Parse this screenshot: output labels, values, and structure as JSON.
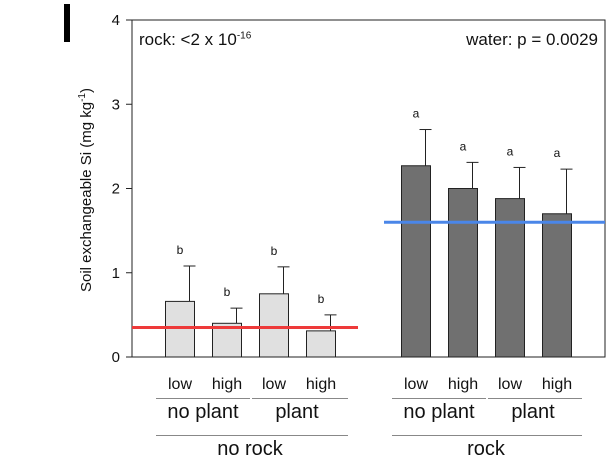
{
  "chart_data": {
    "type": "bar",
    "panel_label": "I",
    "ylabel": {
      "prefix": "Soil exchangeable Si (mg kg",
      "exp": "-1",
      "suffix": ")"
    },
    "ylim": [
      0,
      4
    ],
    "yticks": [
      "0",
      "1",
      "2",
      "3",
      "4"
    ],
    "grid": false,
    "bars": [
      {
        "group": "no rock",
        "plant": "no plant",
        "water": "low",
        "value": 0.66,
        "error": 0.42,
        "letter": "b",
        "color": "#e0e0e0"
      },
      {
        "group": "no rock",
        "plant": "no plant",
        "water": "high",
        "value": 0.4,
        "error": 0.18,
        "letter": "b",
        "color": "#e0e0e0"
      },
      {
        "group": "no rock",
        "plant": "plant",
        "water": "low",
        "value": 0.75,
        "error": 0.32,
        "letter": "b",
        "color": "#e0e0e0"
      },
      {
        "group": "no rock",
        "plant": "plant",
        "water": "high",
        "value": 0.31,
        "error": 0.19,
        "letter": "b",
        "color": "#e0e0e0"
      },
      {
        "group": "rock",
        "plant": "no plant",
        "water": "low",
        "value": 2.27,
        "error": 0.43,
        "letter": "a",
        "color": "#707070"
      },
      {
        "group": "rock",
        "plant": "no plant",
        "water": "high",
        "value": 2.0,
        "error": 0.31,
        "letter": "a",
        "color": "#707070"
      },
      {
        "group": "rock",
        "plant": "plant",
        "water": "low",
        "value": 1.88,
        "error": 0.37,
        "letter": "a",
        "color": "#707070"
      },
      {
        "group": "rock",
        "plant": "plant",
        "water": "high",
        "value": 1.7,
        "error": 0.53,
        "letter": "a",
        "color": "#707070"
      }
    ],
    "mean_lines": [
      {
        "group": "no rock",
        "value": 0.35,
        "color": "#ee3a3a"
      },
      {
        "group": "rock",
        "value": 1.6,
        "color": "#4a86e8"
      }
    ],
    "annotations": {
      "rock_prefix": "rock: <2 x 10",
      "rock_exp": "-16",
      "water": "water: p = 0.0029"
    },
    "x_labels": {
      "water": [
        "low",
        "high",
        "low",
        "high",
        "low",
        "high",
        "low",
        "high"
      ],
      "plant": [
        "no plant",
        "plant",
        "no plant",
        "plant"
      ],
      "rock": [
        "no rock",
        "rock"
      ]
    }
  }
}
